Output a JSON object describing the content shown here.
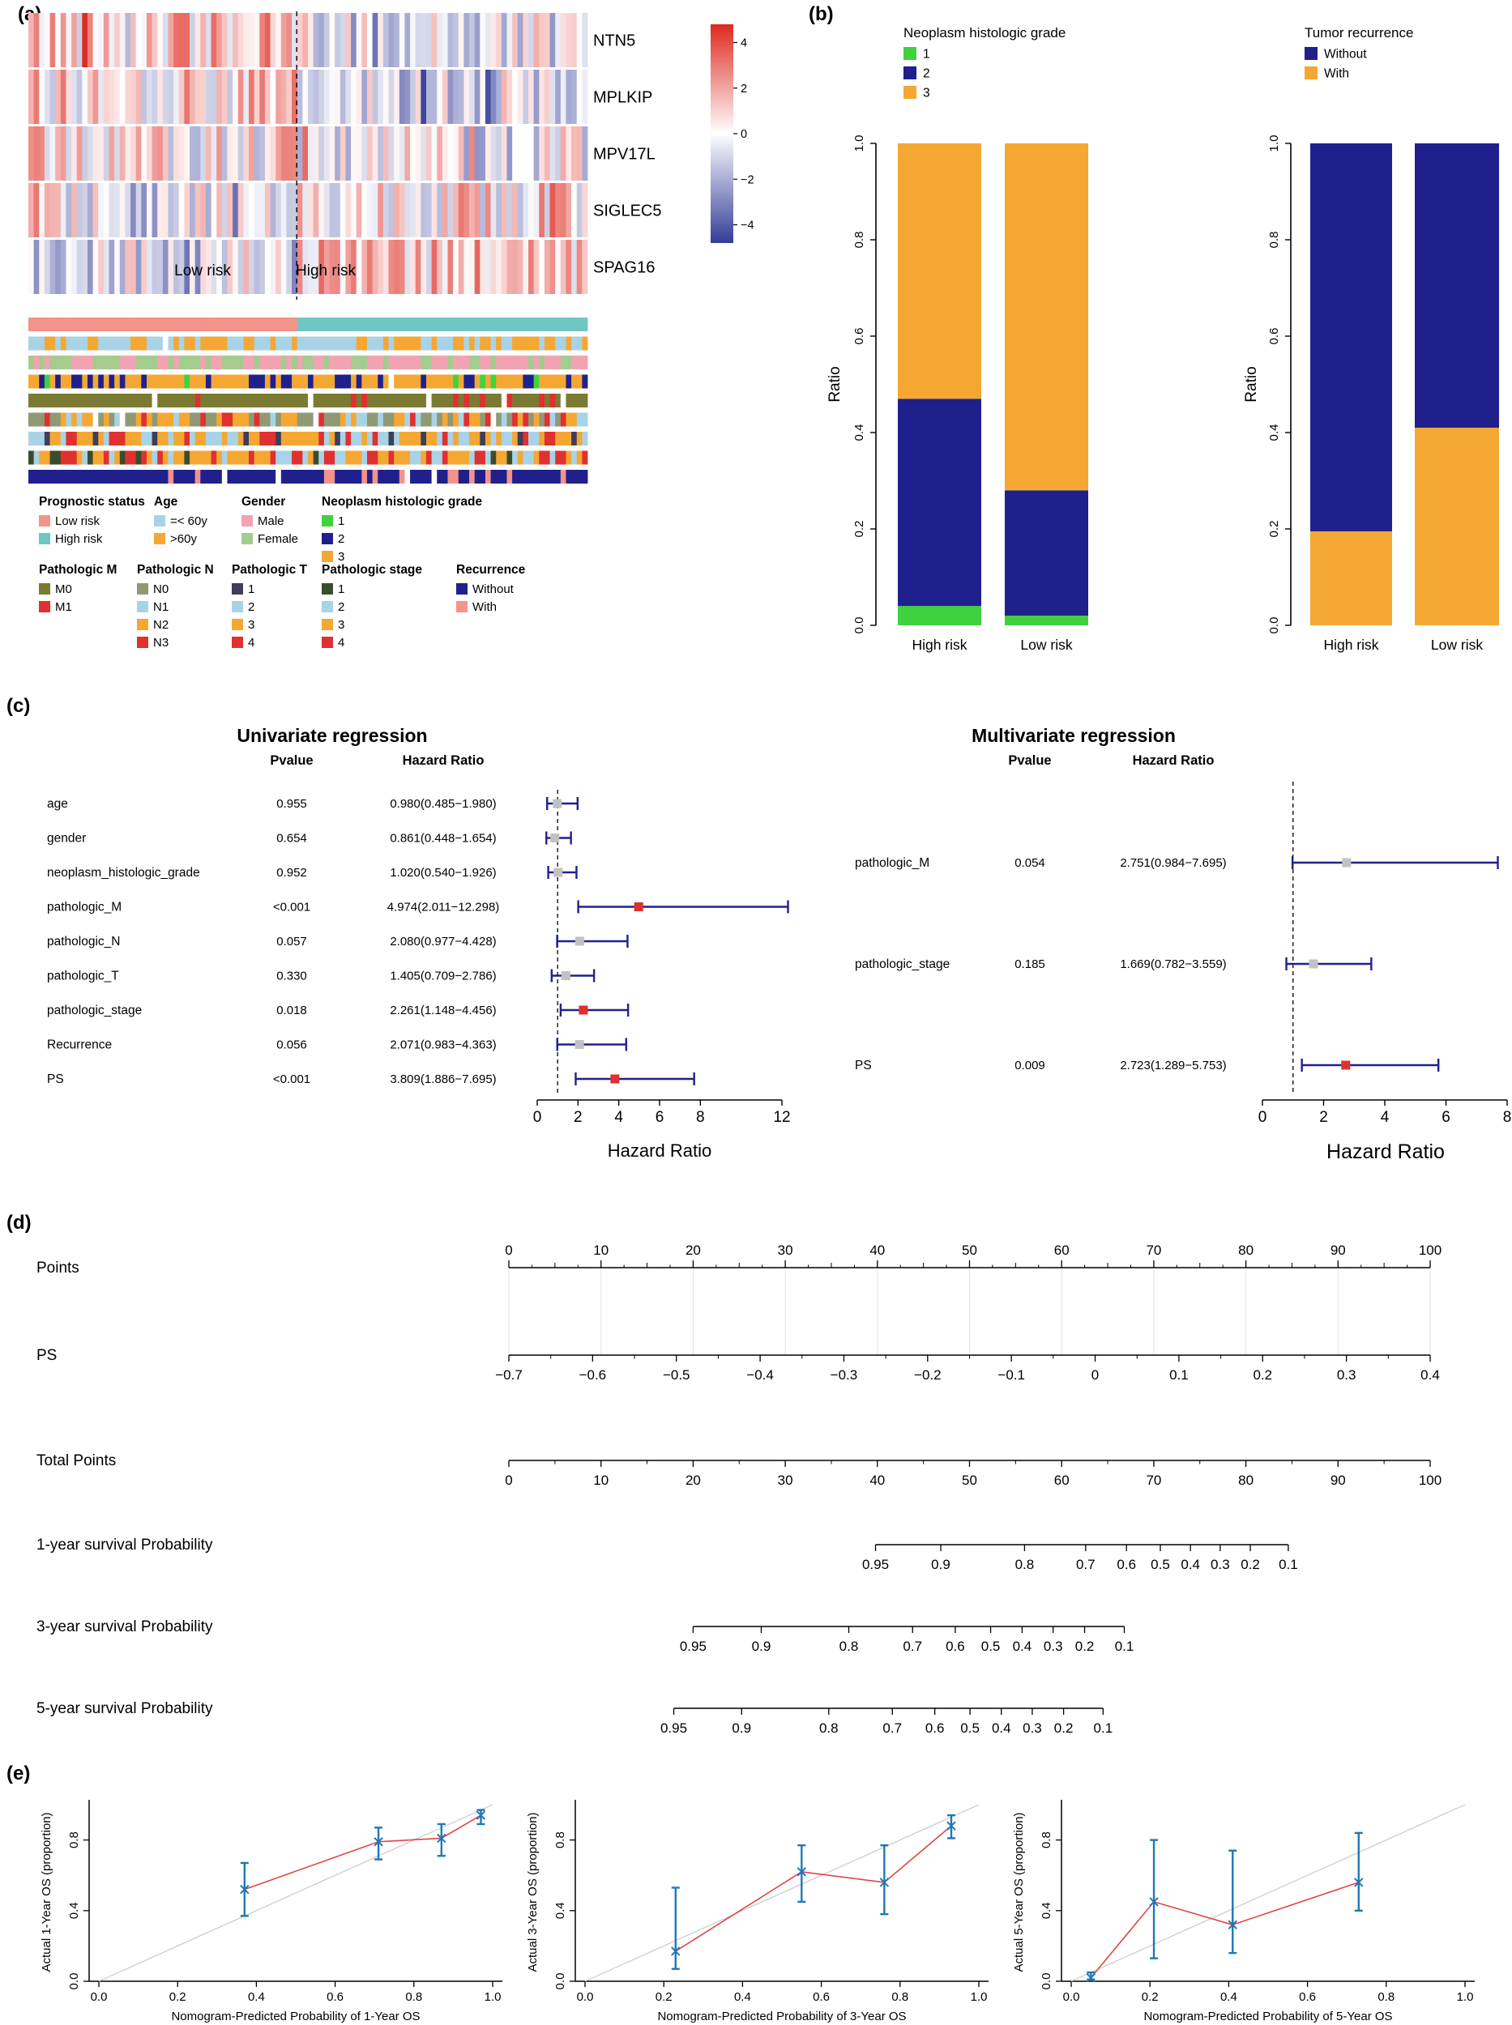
{
  "panels": {
    "a": "(a)",
    "b": "(b)",
    "c": "(c)",
    "d": "(d)",
    "e": "(e)"
  },
  "colors": {
    "ci_navy": "#20208C",
    "gray_marker": "#C2C2C2",
    "red_marker": "#E03030",
    "cal_blue": "#1F78B4",
    "cal_red": "#E04545",
    "ideal_gray": "#C9C9C9"
  },
  "chart_data": [
    {
      "id": "a_heatmap",
      "type": "heatmap",
      "genes": [
        "NTN5",
        "MPLKIP",
        "MPV17L",
        "SIGLEC5",
        "SPAG16"
      ],
      "n_samples": 104,
      "split_fraction": 0.48,
      "group_labels": {
        "left": "Low risk",
        "right": "High risk"
      },
      "row_bias": [
        [
          1.2,
          -0.5
        ],
        [
          0.9,
          -0.7
        ],
        [
          0.5,
          -0.4
        ],
        [
          -0.5,
          0.7
        ],
        [
          -0.6,
          1.1
        ]
      ],
      "colorbar": {
        "tick_labels": [
          "4",
          "2",
          "0",
          "−2",
          "−4"
        ],
        "tick_values": [
          4,
          2,
          0,
          -2,
          -4
        ],
        "range": [
          -4.8,
          4.8
        ],
        "max_color": "#DE2A20",
        "min_color": "#333D99"
      },
      "annotation_rows": [
        {
          "name": "Prognostic status",
          "type": "split",
          "left_color": "#F2938C",
          "right_color": "#6FC7C3"
        },
        {
          "name": "Age",
          "type": "random",
          "palette": [
            "#A8D3E6",
            "#F5A733"
          ],
          "weights": [
            0.5,
            0.5
          ],
          "white": 0.02
        },
        {
          "name": "Gender",
          "type": "random",
          "palette": [
            "#F2A3B3",
            "#A3CC8E"
          ],
          "weights": [
            0.62,
            0.38
          ],
          "white": 0.02
        },
        {
          "name": "Neoplasm histologic grade",
          "type": "random",
          "palette": [
            "#3FD23F",
            "#20208C",
            "#F5A733"
          ],
          "weights": [
            0.03,
            0.35,
            0.62
          ],
          "white": 0.02
        },
        {
          "name": "Pathologic M",
          "type": "random",
          "palette": [
            "#7A7A33",
            "#E03030"
          ],
          "weights": [
            0.82,
            0.12
          ],
          "white": 0.06
        },
        {
          "name": "Pathologic N",
          "type": "random",
          "palette": [
            "#8F9973",
            "#A8D3E6",
            "#F5A733",
            "#E03030"
          ],
          "weights": [
            0.38,
            0.2,
            0.25,
            0.12
          ],
          "white": 0.05
        },
        {
          "name": "Pathologic T",
          "type": "random",
          "palette": [
            "#3D3D5C",
            "#A8D3E6",
            "#F5A733",
            "#E03030"
          ],
          "weights": [
            0.12,
            0.28,
            0.42,
            0.18
          ],
          "white": 0.0
        },
        {
          "name": "Pathologic stage",
          "type": "random",
          "palette": [
            "#394D2D",
            "#A8D3E6",
            "#F5A733",
            "#E03030"
          ],
          "weights": [
            0.1,
            0.25,
            0.45,
            0.2
          ],
          "white": 0.0
        },
        {
          "name": "Recurrence",
          "type": "random",
          "palette": [
            "#20208C",
            "#F2938C"
          ],
          "weights": [
            0.78,
            0.16
          ],
          "white": 0.06
        }
      ],
      "legend_groups_row1": [
        {
          "title": "Prognostic status",
          "items": [
            {
              "label": "Low risk",
              "color": "#F2938C"
            },
            {
              "label": "High risk",
              "color": "#6FC7C3"
            }
          ]
        },
        {
          "title": "Age",
          "items": [
            {
              "label": "=< 60y",
              "color": "#A8D3E6"
            },
            {
              "label": ">60y",
              "color": "#F5A733"
            }
          ]
        },
        {
          "title": "Gender",
          "items": [
            {
              "label": "Male",
              "color": "#F2A3B3"
            },
            {
              "label": "Female",
              "color": "#A3CC8E"
            }
          ]
        },
        {
          "title": "Neoplasm histologic grade",
          "items": [
            {
              "label": "1",
              "color": "#3FD23F"
            },
            {
              "label": "2",
              "color": "#20208C"
            },
            {
              "label": "3",
              "color": "#F5A733"
            }
          ]
        }
      ],
      "legend_groups_row2": [
        {
          "title": "Pathologic M",
          "items": [
            {
              "label": "M0",
              "color": "#7A7A33"
            },
            {
              "label": "M1",
              "color": "#E03030"
            }
          ]
        },
        {
          "title": "Pathologic N",
          "items": [
            {
              "label": "N0",
              "color": "#8F9973"
            },
            {
              "label": "N1",
              "color": "#A8D3E6"
            },
            {
              "label": "N2",
              "color": "#F5A733"
            },
            {
              "label": "N3",
              "color": "#E03030"
            }
          ]
        },
        {
          "title": "Pathologic T",
          "items": [
            {
              "label": "1",
              "color": "#3D3D5C"
            },
            {
              "label": "2",
              "color": "#A8D3E6"
            },
            {
              "label": "3",
              "color": "#F5A733"
            },
            {
              "label": "4",
              "color": "#E03030"
            }
          ]
        },
        {
          "title": "Pathologic stage",
          "items": [
            {
              "label": "1",
              "color": "#394D2D"
            },
            {
              "label": "2",
              "color": "#A8D3E6"
            },
            {
              "label": "3",
              "color": "#F5A733"
            },
            {
              "label": "4",
              "color": "#E03030"
            }
          ]
        },
        {
          "title": "Recurrence",
          "items": [
            {
              "label": "Without",
              "color": "#20208C"
            },
            {
              "label": "With",
              "color": "#F2938C"
            }
          ]
        }
      ]
    },
    {
      "id": "b_grade",
      "type": "bar",
      "stacked": true,
      "legend_title": "Neoplasm histologic grade",
      "legend": [
        {
          "label": "1",
          "color": "#3FD23F"
        },
        {
          "label": "2",
          "color": "#20208C"
        },
        {
          "label": "3",
          "color": "#F5A733"
        }
      ],
      "categories": [
        "High risk",
        "Low risk"
      ],
      "series": [
        {
          "name": "1",
          "color": "#3FD23F",
          "values": [
            0.04,
            0.02
          ]
        },
        {
          "name": "2",
          "color": "#20208C",
          "values": [
            0.43,
            0.26
          ]
        },
        {
          "name": "3",
          "color": "#F5A733",
          "values": [
            0.53,
            0.72
          ]
        }
      ],
      "ylabel": "Ratio",
      "yticks": [
        "0.0",
        "0.2",
        "0.4",
        "0.6",
        "0.8",
        "1.0"
      ],
      "ylim": [
        0,
        1
      ]
    },
    {
      "id": "b_recurrence",
      "type": "bar",
      "stacked": true,
      "legend_title": "Tumor recurrence",
      "legend": [
        {
          "label": "Without",
          "color": "#20208C"
        },
        {
          "label": "With",
          "color": "#F5A733"
        }
      ],
      "categories": [
        "High risk",
        "Low risk"
      ],
      "series": [
        {
          "name": "With",
          "color": "#F5A733",
          "values": [
            0.195,
            0.41
          ]
        },
        {
          "name": "Without",
          "color": "#20208C",
          "values": [
            0.805,
            0.59
          ]
        }
      ],
      "ylabel": "Ratio",
      "yticks": [
        "0.0",
        "0.2",
        "0.4",
        "0.6",
        "0.8",
        "1.0"
      ],
      "ylim": [
        0,
        1
      ]
    },
    {
      "id": "c_univariate",
      "type": "forest",
      "title": "Univariate regression",
      "headers": [
        "Pvalue",
        "Hazard Ratio"
      ],
      "xlabel": "Hazard Ratio",
      "xticks": [
        0,
        2,
        4,
        6,
        8,
        12
      ],
      "xmax": 12,
      "ref": 1,
      "rows": [
        {
          "label": "age",
          "pvalue": "0.955",
          "hr": "0.980(0.485−1.980)",
          "est": 0.98,
          "lo": 0.485,
          "hi": 1.98,
          "sig": false
        },
        {
          "label": "gender",
          "pvalue": "0.654",
          "hr": "0.861(0.448−1.654)",
          "est": 0.861,
          "lo": 0.448,
          "hi": 1.654,
          "sig": false
        },
        {
          "label": "neoplasm_histologic_grade",
          "pvalue": "0.952",
          "hr": "1.020(0.540−1.926)",
          "est": 1.02,
          "lo": 0.54,
          "hi": 1.926,
          "sig": false
        },
        {
          "label": "pathologic_M",
          "pvalue": "<0.001",
          "hr": "4.974(2.011−12.298)",
          "est": 4.974,
          "lo": 2.011,
          "hi": 12.298,
          "sig": true
        },
        {
          "label": "pathologic_N",
          "pvalue": "0.057",
          "hr": "2.080(0.977−4.428)",
          "est": 2.08,
          "lo": 0.977,
          "hi": 4.428,
          "sig": false
        },
        {
          "label": "pathologic_T",
          "pvalue": "0.330",
          "hr": "1.405(0.709−2.786)",
          "est": 1.405,
          "lo": 0.709,
          "hi": 2.786,
          "sig": false
        },
        {
          "label": "pathologic_stage",
          "pvalue": "0.018",
          "hr": "2.261(1.148−4.456)",
          "est": 2.261,
          "lo": 1.148,
          "hi": 4.456,
          "sig": true
        },
        {
          "label": "Recurrence",
          "pvalue": "0.056",
          "hr": "2.071(0.983−4.363)",
          "est": 2.071,
          "lo": 0.983,
          "hi": 4.363,
          "sig": false
        },
        {
          "label": "PS",
          "pvalue": "<0.001",
          "hr": "3.809(1.886−7.695)",
          "est": 3.809,
          "lo": 1.886,
          "hi": 7.695,
          "sig": true
        }
      ]
    },
    {
      "id": "c_multivariate",
      "type": "forest",
      "title": "Multivariate regression",
      "headers": [
        "Pvalue",
        "Hazard Ratio"
      ],
      "xlabel": "Hazard Ratio",
      "xticks": [
        0,
        2,
        4,
        6,
        8
      ],
      "xmax": 8,
      "ref": 1,
      "rows": [
        {
          "label": "pathologic_M",
          "pvalue": "0.054",
          "hr": "2.751(0.984−7.695)",
          "est": 2.751,
          "lo": 0.984,
          "hi": 7.695,
          "sig": false
        },
        {
          "label": "pathologic_stage",
          "pvalue": "0.185",
          "hr": "1.669(0.782−3.559)",
          "est": 1.669,
          "lo": 0.782,
          "hi": 3.559,
          "sig": false
        },
        {
          "label": "PS",
          "pvalue": "0.009",
          "hr": "2.723(1.289−5.753)",
          "est": 2.723,
          "lo": 1.289,
          "hi": 5.753,
          "sig": true
        }
      ]
    },
    {
      "id": "d_nomogram",
      "type": "nomogram",
      "rows": [
        {
          "label": "Points",
          "kind": "linear",
          "side": "above",
          "minor_div": 4,
          "labels": [
            "0",
            "10",
            "20",
            "30",
            "40",
            "50",
            "60",
            "70",
            "80",
            "90",
            "100"
          ]
        },
        {
          "label": "PS",
          "kind": "linear",
          "side": "below",
          "minor_div": 2,
          "labels": [
            "−0.7",
            "−0.6",
            "−0.5",
            "−0.4",
            "−0.3",
            "−0.2",
            "−0.1",
            "0",
            "0.1",
            "0.2",
            "0.3",
            "0.4"
          ]
        },
        {
          "label": "Total Points",
          "kind": "linear",
          "side": "below",
          "minor_div": 2,
          "labels": [
            "0",
            "10",
            "20",
            "30",
            "40",
            "50",
            "60",
            "70",
            "80",
            "90",
            "100"
          ]
        },
        {
          "label": "1-year survival Probability",
          "kind": "prob",
          "span": [
            0.398,
            0.846
          ],
          "labels": [
            "0.95",
            "0.9",
            "0.8",
            "0.7",
            "0.6",
            "0.5",
            "0.4",
            "0.3",
            "0.2",
            "0.1"
          ],
          "positions": [
            0,
            0.158,
            0.361,
            0.509,
            0.608,
            0.69,
            0.763,
            0.835,
            0.908,
            1
          ]
        },
        {
          "label": "3-year survival Probability",
          "kind": "prob",
          "span": [
            0.2,
            0.668
          ],
          "labels": [
            "0.95",
            "0.9",
            "0.8",
            "0.7",
            "0.6",
            "0.5",
            "0.4",
            "0.3",
            "0.2",
            "0.1"
          ],
          "positions": [
            0,
            0.158,
            0.361,
            0.509,
            0.608,
            0.69,
            0.763,
            0.835,
            0.908,
            1
          ]
        },
        {
          "label": "5-year survival Probability",
          "kind": "prob",
          "span": [
            0.179,
            0.645
          ],
          "labels": [
            "0.95",
            "0.9",
            "0.8",
            "0.7",
            "0.6",
            "0.5",
            "0.4",
            "0.3",
            "0.2",
            "0.1"
          ],
          "positions": [
            0,
            0.158,
            0.361,
            0.509,
            0.608,
            0.69,
            0.763,
            0.835,
            0.908,
            1
          ]
        }
      ]
    },
    {
      "id": "e_cal_1y",
      "type": "scatter",
      "xlabel": "Nomogram-Predicted Probability of 1-Year OS",
      "ylabel": "Actual 1-Year OS (proportion)",
      "xticks": [
        "0.0",
        "0.2",
        "0.4",
        "0.6",
        "0.8",
        "1.0"
      ],
      "yticks": [
        "0.0",
        "0.4",
        "0.8"
      ],
      "xlim": [
        0,
        1
      ],
      "ylim": [
        0,
        1
      ],
      "points": [
        {
          "x": 0.37,
          "y": 0.52,
          "lo": 0.37,
          "hi": 0.67
        },
        {
          "x": 0.71,
          "y": 0.79,
          "lo": 0.69,
          "hi": 0.87
        },
        {
          "x": 0.87,
          "y": 0.81,
          "lo": 0.71,
          "hi": 0.89
        },
        {
          "x": 0.97,
          "y": 0.94,
          "lo": 0.89,
          "hi": 0.97
        }
      ]
    },
    {
      "id": "e_cal_3y",
      "type": "scatter",
      "xlabel": "Nomogram-Predicted Probability of 3-Year OS",
      "ylabel": "Actual 3-Year OS (proportion)",
      "xticks": [
        "0.0",
        "0.2",
        "0.4",
        "0.6",
        "0.8",
        "1.0"
      ],
      "yticks": [
        "0.0",
        "0.4",
        "0.8"
      ],
      "xlim": [
        0,
        1
      ],
      "ylim": [
        0,
        1
      ],
      "points": [
        {
          "x": 0.23,
          "y": 0.17,
          "lo": 0.07,
          "hi": 0.53
        },
        {
          "x": 0.55,
          "y": 0.62,
          "lo": 0.45,
          "hi": 0.77
        },
        {
          "x": 0.76,
          "y": 0.56,
          "lo": 0.38,
          "hi": 0.77
        },
        {
          "x": 0.93,
          "y": 0.88,
          "lo": 0.81,
          "hi": 0.94
        }
      ]
    },
    {
      "id": "e_cal_5y",
      "type": "scatter",
      "xlabel": "Nomogram-Predicted Probability of 5-Year OS",
      "ylabel": "Actual 5-Year OS (proportion)",
      "xticks": [
        "0.0",
        "0.2",
        "0.4",
        "0.6",
        "0.8",
        "1.0"
      ],
      "yticks": [
        "0.0",
        "0.4",
        "0.8"
      ],
      "xlim": [
        0,
        1
      ],
      "ylim": [
        0,
        1
      ],
      "points": [
        {
          "x": 0.05,
          "y": 0.02,
          "lo": 0.01,
          "hi": 0.05
        },
        {
          "x": 0.21,
          "y": 0.45,
          "lo": 0.13,
          "hi": 0.8
        },
        {
          "x": 0.41,
          "y": 0.32,
          "lo": 0.16,
          "hi": 0.74
        },
        {
          "x": 0.73,
          "y": 0.56,
          "lo": 0.4,
          "hi": 0.84
        }
      ]
    }
  ]
}
